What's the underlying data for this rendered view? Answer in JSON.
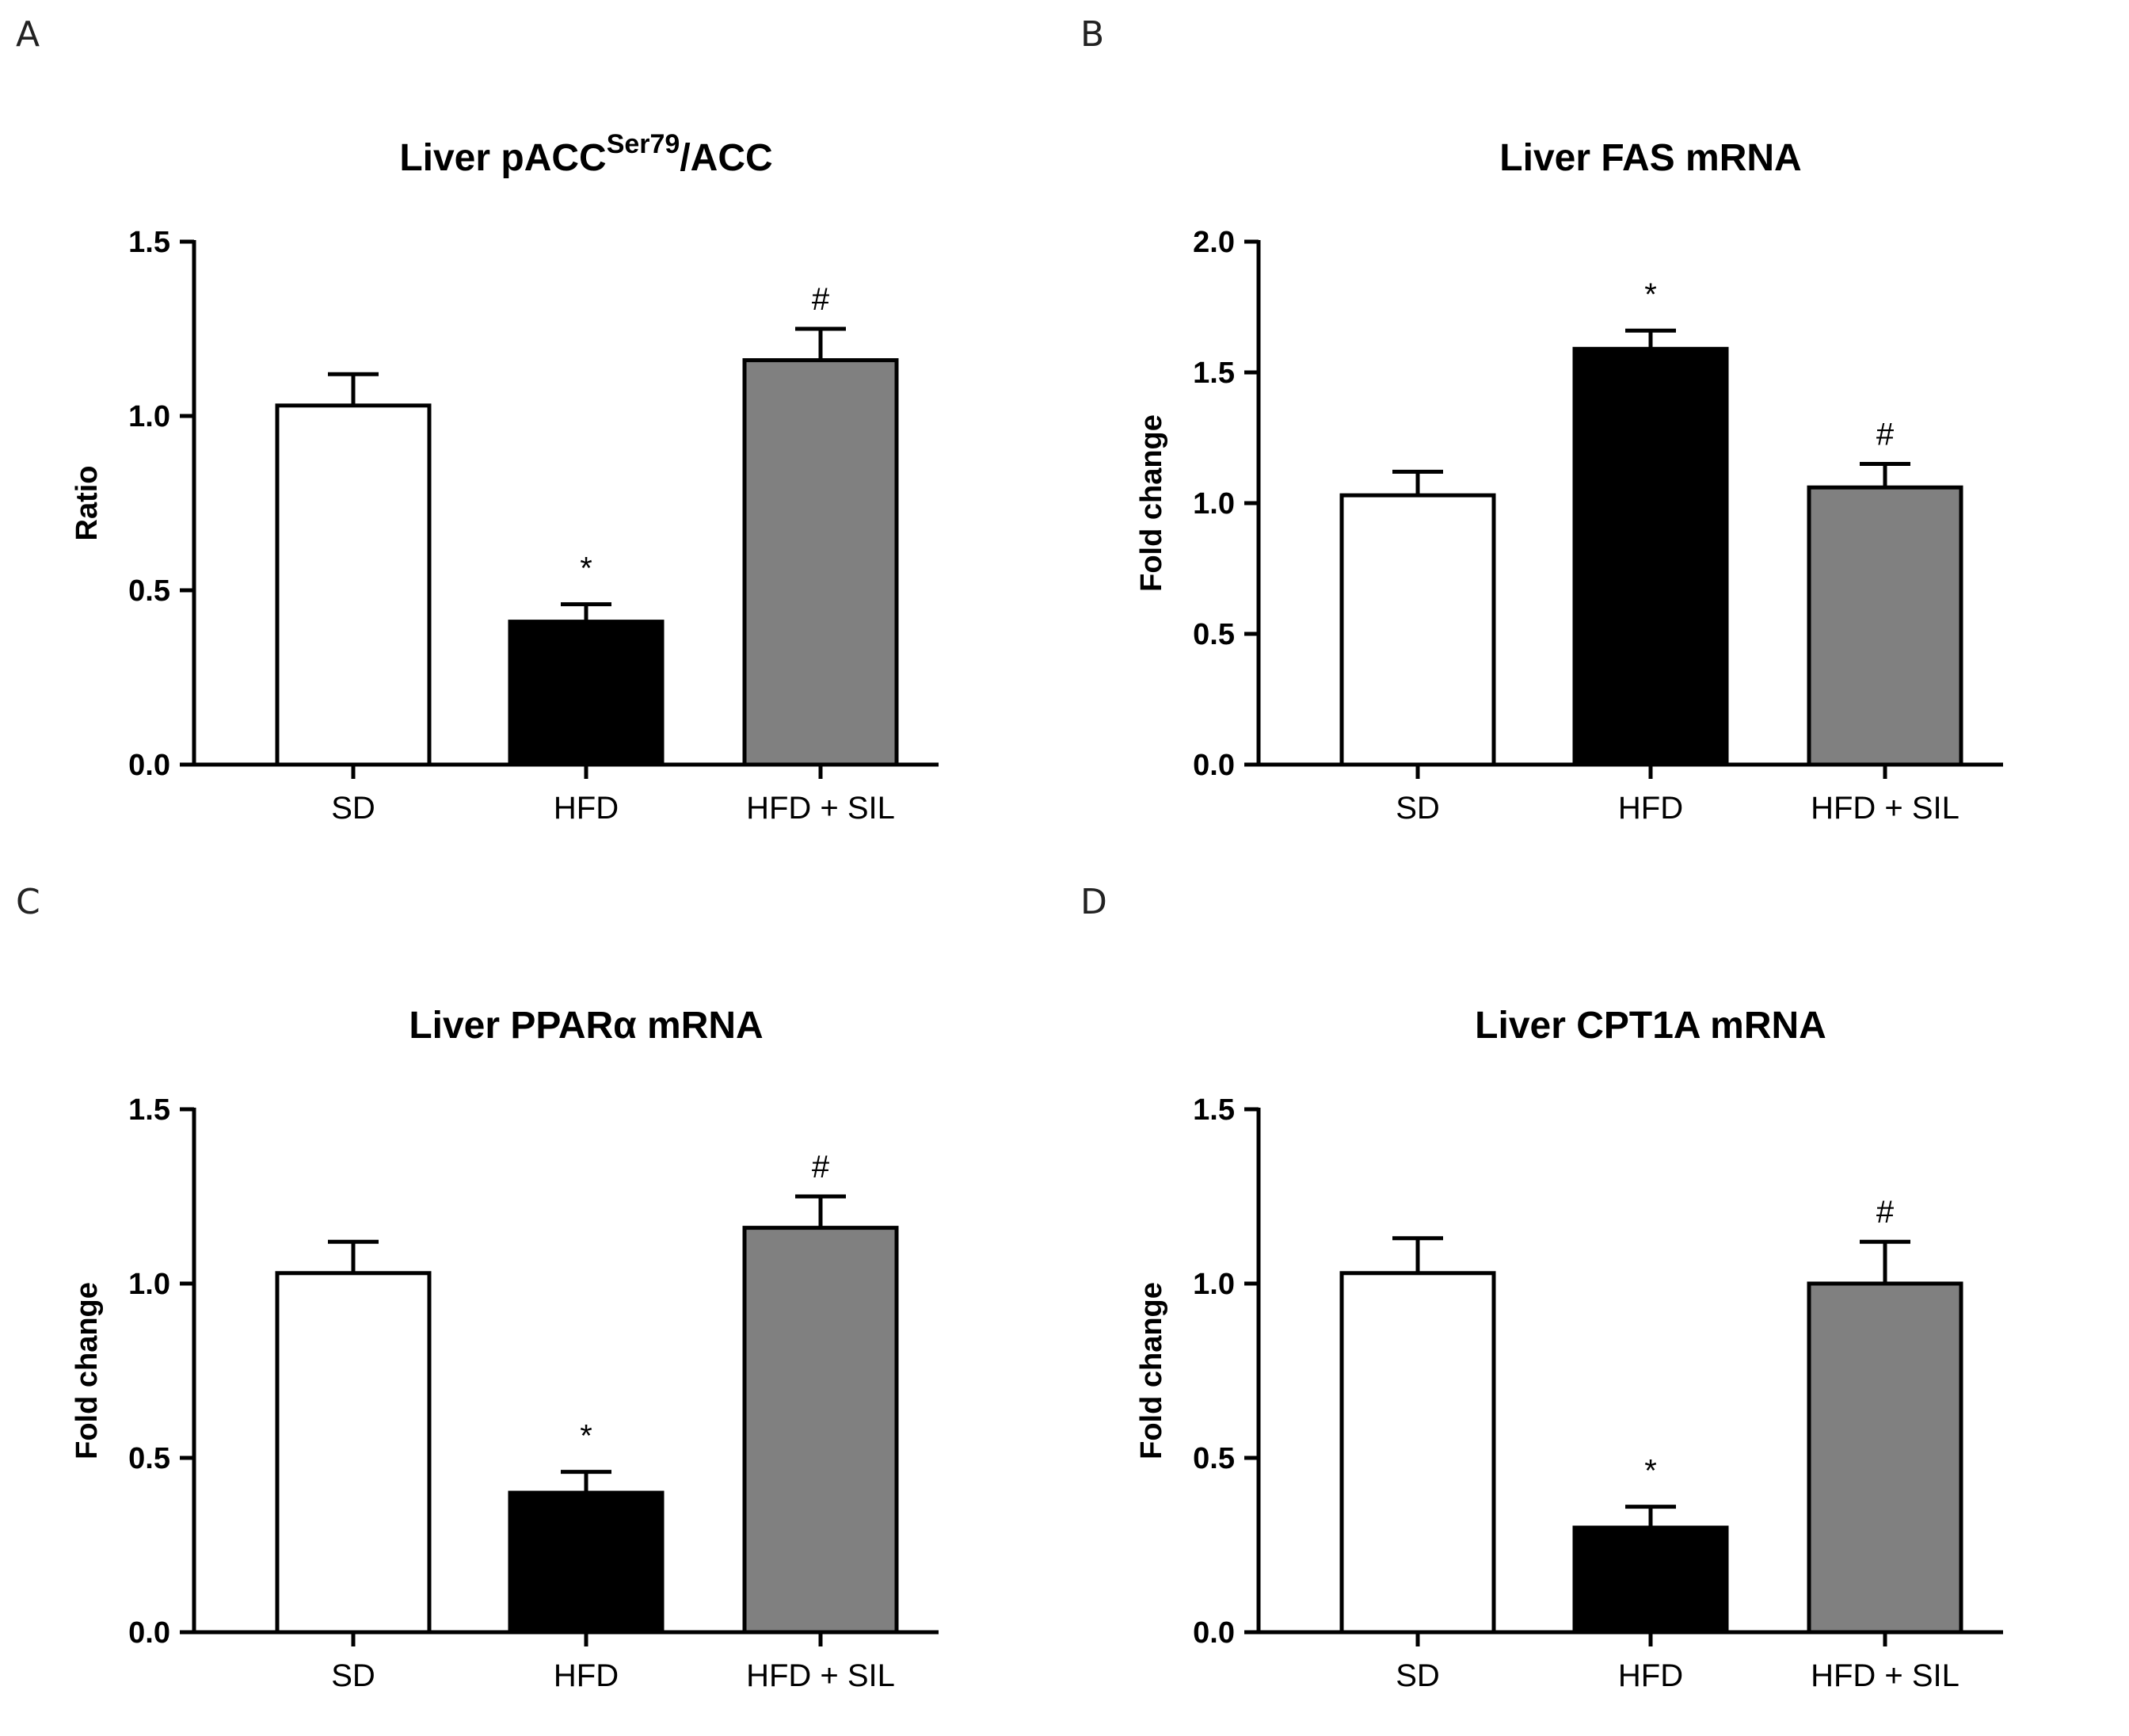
{
  "chart_data": [
    {
      "panel": "A",
      "type": "bar",
      "title": "Liver pACC",
      "title_sup": "Ser79",
      "title_suffix": "/ACC",
      "ylabel": "Ratio",
      "xlabel": "",
      "ylim": [
        0,
        1.5
      ],
      "yticks": [
        "0.0",
        "0.5",
        "1.0",
        "1.5"
      ],
      "categories": [
        "SD",
        "HFD",
        "HFD + SIL"
      ],
      "values": [
        1.03,
        0.41,
        1.16
      ],
      "errors": [
        0.09,
        0.05,
        0.09
      ],
      "colors": [
        "#ffffff",
        "#000000",
        "#808080"
      ],
      "annotations": [
        "",
        "*",
        "#"
      ]
    },
    {
      "panel": "B",
      "type": "bar",
      "title": "Liver FAS mRNA",
      "title_sup": "",
      "title_suffix": "",
      "ylabel": "Fold change",
      "xlabel": "",
      "ylim": [
        0,
        2.0
      ],
      "yticks": [
        "0.0",
        "0.5",
        "1.0",
        "1.5",
        "2.0"
      ],
      "categories": [
        "SD",
        "HFD",
        "HFD + SIL"
      ],
      "values": [
        1.03,
        1.59,
        1.06
      ],
      "errors": [
        0.09,
        0.07,
        0.09
      ],
      "colors": [
        "#ffffff",
        "#000000",
        "#808080"
      ],
      "annotations": [
        "",
        "*",
        "#"
      ]
    },
    {
      "panel": "C",
      "type": "bar",
      "title": "Liver PPARα mRNA",
      "title_sup": "",
      "title_suffix": "",
      "ylabel": "Fold change",
      "xlabel": "",
      "ylim": [
        0,
        1.5
      ],
      "yticks": [
        "0.0",
        "0.5",
        "1.0",
        "1.5"
      ],
      "categories": [
        "SD",
        "HFD",
        "HFD + SIL"
      ],
      "values": [
        1.03,
        0.4,
        1.16
      ],
      "errors": [
        0.09,
        0.06,
        0.09
      ],
      "colors": [
        "#ffffff",
        "#000000",
        "#808080"
      ],
      "annotations": [
        "",
        "*",
        "#"
      ]
    },
    {
      "panel": "D",
      "type": "bar",
      "title": "Liver CPT1A mRNA",
      "title_sup": "",
      "title_suffix": "",
      "ylabel": "Fold change",
      "xlabel": "",
      "ylim": [
        0,
        1.5
      ],
      "yticks": [
        "0.0",
        "0.5",
        "1.0",
        "1.5"
      ],
      "categories": [
        "SD",
        "HFD",
        "HFD + SIL"
      ],
      "values": [
        1.03,
        0.3,
        1.0
      ],
      "errors": [
        0.1,
        0.06,
        0.12
      ],
      "colors": [
        "#ffffff",
        "#000000",
        "#808080"
      ],
      "annotations": [
        "",
        "*",
        "#"
      ]
    }
  ]
}
